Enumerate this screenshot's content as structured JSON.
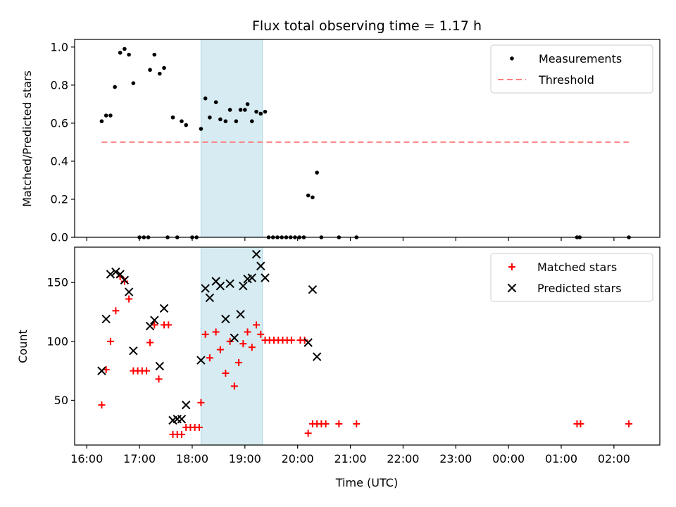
{
  "title": "Flux total observing time = 1.17 h",
  "colors": {
    "measurement": "#000000",
    "threshold": "#ff7f7f",
    "matched": "#ff0000",
    "predicted": "#000000",
    "shade": "#add8e6"
  },
  "chart_data": [
    {
      "type": "scatter",
      "name": "ratio-panel",
      "ylabel": "Matched/Predicted stars",
      "xlabel": "",
      "x_unit": "hours since 00:00 UTC",
      "xlim": [
        15.77,
        26.87
      ],
      "ylim": [
        0.0,
        1.04
      ],
      "yticks": [
        0.0,
        0.2,
        0.4,
        0.6,
        0.8,
        1.0
      ],
      "ytick_labels": [
        "0.0",
        "0.2",
        "0.4",
        "0.6",
        "0.8",
        "1.0"
      ],
      "shaded_interval": [
        "18:10",
        "19:20"
      ],
      "legend_position": "top-right",
      "series": [
        {
          "name": "Measurements",
          "marker": "dot",
          "points": [
            [
              "16:17",
              0.61
            ],
            [
              "16:22",
              0.64
            ],
            [
              "16:27",
              0.64
            ],
            [
              "16:32",
              0.79
            ],
            [
              "16:38",
              0.97
            ],
            [
              "16:43",
              0.99
            ],
            [
              "16:48",
              0.96
            ],
            [
              "16:53",
              0.81
            ],
            [
              "17:00",
              0.0
            ],
            [
              "17:05",
              0.0
            ],
            [
              "17:10",
              0.0
            ],
            [
              "17:12",
              0.88
            ],
            [
              "17:17",
              0.96
            ],
            [
              "17:23",
              0.86
            ],
            [
              "17:28",
              0.89
            ],
            [
              "17:32",
              0.0
            ],
            [
              "17:38",
              0.63
            ],
            [
              "17:43",
              0.0
            ],
            [
              "17:48",
              0.61
            ],
            [
              "17:53",
              0.59
            ],
            [
              "18:00",
              0.0
            ],
            [
              "18:05",
              0.0
            ],
            [
              "18:10",
              0.57
            ],
            [
              "18:15",
              0.73
            ],
            [
              "18:20",
              0.63
            ],
            [
              "18:27",
              0.71
            ],
            [
              "18:32",
              0.62
            ],
            [
              "18:38",
              0.61
            ],
            [
              "18:43",
              0.67
            ],
            [
              "18:50",
              0.61
            ],
            [
              "18:55",
              0.67
            ],
            [
              "19:00",
              0.67
            ],
            [
              "19:03",
              0.7
            ],
            [
              "19:08",
              0.61
            ],
            [
              "19:13",
              0.66
            ],
            [
              "19:18",
              0.65
            ],
            [
              "19:23",
              0.66
            ],
            [
              "19:27",
              0.0
            ],
            [
              "19:32",
              0.0
            ],
            [
              "19:37",
              0.0
            ],
            [
              "19:42",
              0.0
            ],
            [
              "19:47",
              0.0
            ],
            [
              "19:52",
              0.0
            ],
            [
              "19:57",
              0.0
            ],
            [
              "20:02",
              0.0
            ],
            [
              "20:07",
              0.0
            ],
            [
              "20:12",
              0.22
            ],
            [
              "20:17",
              0.21
            ],
            [
              "20:22",
              0.34
            ],
            [
              "20:27",
              0.0
            ],
            [
              "20:47",
              0.0
            ],
            [
              "21:07",
              0.0
            ],
            [
              "25:18",
              0.0
            ],
            [
              "25:21",
              0.0
            ],
            [
              "26:17",
              0.0
            ]
          ]
        },
        {
          "name": "Threshold",
          "marker": "dashed-line",
          "points": [
            [
              "16:17",
              0.5
            ],
            [
              "26:17",
              0.5
            ]
          ]
        }
      ]
    },
    {
      "type": "scatter",
      "name": "count-panel",
      "ylabel": "Count",
      "xlabel": "Time (UTC)",
      "x_unit": "hours since 00:00 UTC",
      "xlim": [
        15.77,
        26.87
      ],
      "ylim": [
        12,
        180
      ],
      "yticks": [
        50,
        100,
        150
      ],
      "ytick_labels": [
        "50",
        "100",
        "150"
      ],
      "xticks": [
        "16:00",
        "17:00",
        "18:00",
        "19:00",
        "20:00",
        "21:00",
        "22:00",
        "23:00",
        "24:00",
        "25:00",
        "26:00"
      ],
      "xtick_labels": [
        "16:00",
        "17:00",
        "18:00",
        "19:00",
        "20:00",
        "21:00",
        "22:00",
        "23:00",
        "00:00",
        "01:00",
        "02:00"
      ],
      "shaded_interval": [
        "18:10",
        "19:20"
      ],
      "legend_position": "top-right",
      "series": [
        {
          "name": "Matched stars",
          "marker": "plus",
          "points": [
            [
              "16:17",
              46
            ],
            [
              "16:22",
              76
            ],
            [
              "16:27",
              100
            ],
            [
              "16:33",
              126
            ],
            [
              "16:38",
              155
            ],
            [
              "16:43",
              151
            ],
            [
              "16:48",
              136
            ],
            [
              "16:53",
              75
            ],
            [
              "16:58",
              75
            ],
            [
              "17:03",
              75
            ],
            [
              "17:08",
              75
            ],
            [
              "17:12",
              99
            ],
            [
              "17:17",
              114
            ],
            [
              "17:22",
              68
            ],
            [
              "17:28",
              114
            ],
            [
              "17:33",
              114
            ],
            [
              "17:38",
              21
            ],
            [
              "17:43",
              21
            ],
            [
              "17:48",
              21
            ],
            [
              "17:53",
              27
            ],
            [
              "17:58",
              27
            ],
            [
              "18:03",
              27
            ],
            [
              "18:08",
              27
            ],
            [
              "18:10",
              48
            ],
            [
              "18:15",
              106
            ],
            [
              "18:20",
              86
            ],
            [
              "18:27",
              108
            ],
            [
              "18:32",
              93
            ],
            [
              "18:38",
              73
            ],
            [
              "18:43",
              100
            ],
            [
              "18:48",
              62
            ],
            [
              "18:53",
              82
            ],
            [
              "18:58",
              98
            ],
            [
              "19:03",
              108
            ],
            [
              "19:08",
              95
            ],
            [
              "19:13",
              114
            ],
            [
              "19:18",
              106
            ],
            [
              "19:23",
              101
            ],
            [
              "19:28",
              101
            ],
            [
              "19:33",
              101
            ],
            [
              "19:38",
              101
            ],
            [
              "19:43",
              101
            ],
            [
              "19:48",
              101
            ],
            [
              "19:53",
              101
            ],
            [
              "20:03",
              101
            ],
            [
              "20:08",
              101
            ],
            [
              "20:12",
              22
            ],
            [
              "20:17",
              30
            ],
            [
              "20:22",
              30
            ],
            [
              "20:27",
              30
            ],
            [
              "20:32",
              30
            ],
            [
              "20:47",
              30
            ],
            [
              "21:07",
              30
            ],
            [
              "25:18",
              30
            ],
            [
              "25:22",
              30
            ],
            [
              "26:17",
              30
            ]
          ]
        },
        {
          "name": "Predicted stars",
          "marker": "x",
          "points": [
            [
              "16:17",
              75
            ],
            [
              "16:22",
              119
            ],
            [
              "16:27",
              157
            ],
            [
              "16:33",
              159
            ],
            [
              "16:38",
              157
            ],
            [
              "16:43",
              152
            ],
            [
              "16:48",
              142
            ],
            [
              "16:53",
              92
            ],
            [
              "17:12",
              113
            ],
            [
              "17:17",
              118
            ],
            [
              "17:23",
              79
            ],
            [
              "17:28",
              128
            ],
            [
              "17:38",
              33
            ],
            [
              "17:43",
              34
            ],
            [
              "17:48",
              34
            ],
            [
              "17:53",
              46
            ],
            [
              "18:10",
              84
            ],
            [
              "18:15",
              145
            ],
            [
              "18:20",
              137
            ],
            [
              "18:27",
              151
            ],
            [
              "18:32",
              147
            ],
            [
              "18:38",
              119
            ],
            [
              "18:43",
              149
            ],
            [
              "18:48",
              103
            ],
            [
              "18:55",
              123
            ],
            [
              "18:58",
              147
            ],
            [
              "19:03",
              153
            ],
            [
              "19:08",
              154
            ],
            [
              "19:13",
              174
            ],
            [
              "19:18",
              164
            ],
            [
              "19:23",
              154
            ],
            [
              "20:12",
              99
            ],
            [
              "20:17",
              144
            ],
            [
              "20:22",
              87
            ]
          ]
        }
      ]
    }
  ]
}
